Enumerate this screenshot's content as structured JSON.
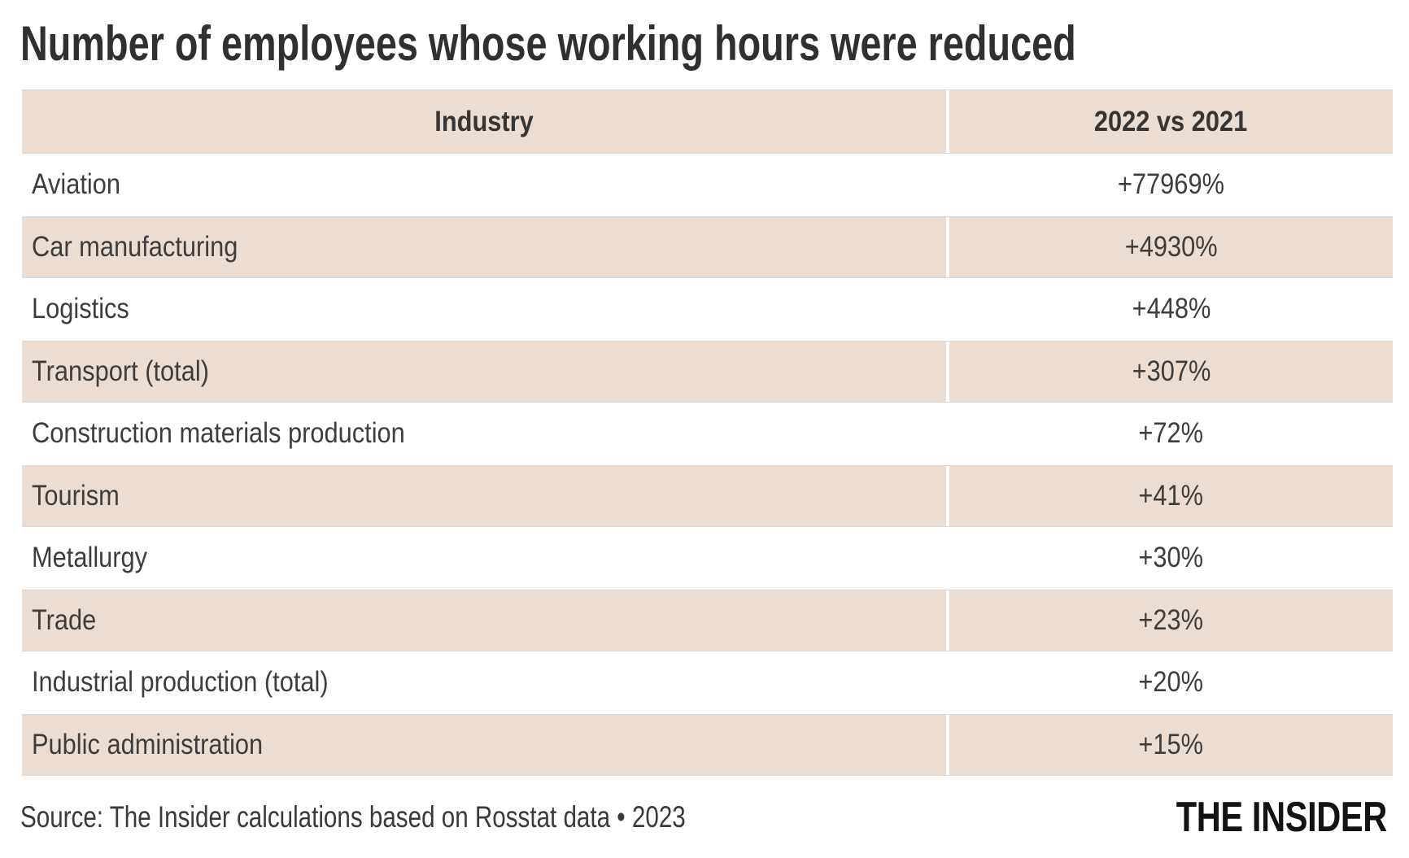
{
  "chart_data": {
    "type": "table",
    "title": "Number of employees whose working hours were reduced",
    "columns": [
      "Industry",
      "2022 vs 2021"
    ],
    "rows": [
      {
        "industry": "Aviation",
        "change": "+77969%"
      },
      {
        "industry": "Car manufacturing",
        "change": "+4930%"
      },
      {
        "industry": "Logistics",
        "change": "+448%"
      },
      {
        "industry": "Transport (total)",
        "change": "+307%"
      },
      {
        "industry": "Construction materials production",
        "change": "+72%"
      },
      {
        "industry": "Tourism",
        "change": "+41%"
      },
      {
        "industry": "Metallurgy",
        "change": "+30%"
      },
      {
        "industry": "Trade",
        "change": "+23%"
      },
      {
        "industry": "Industrial production (total)",
        "change": "+20%"
      },
      {
        "industry": "Public administration",
        "change": "+15%"
      }
    ],
    "values_pct": [
      77969,
      4930,
      448,
      307,
      72,
      41,
      30,
      23,
      20,
      15
    ],
    "layout": {
      "legend": "none",
      "grid": "off",
      "alternating_row_shading": true,
      "value_column_alignment": "center"
    }
  },
  "footer": {
    "source": "Source: The Insider calculations based on Rosstat data • 2023",
    "brand": "THE INSIDER"
  },
  "colors": {
    "row_shade": "#ecddd3",
    "row_border": "#d8d8d8",
    "column_divider": "#ffffff",
    "title_text": "#303030",
    "cell_text": "#3d3d3d",
    "logo_text": "#131313",
    "background": "#ffffff"
  }
}
